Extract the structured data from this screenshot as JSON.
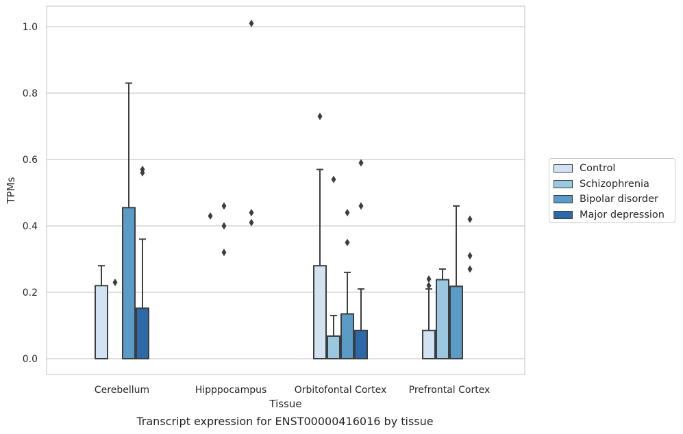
{
  "chart_data": {
    "type": "bar",
    "title": "Transcript expression for ENST00000416016 by tissue",
    "xlabel": "Tissue",
    "ylabel": "TPMs",
    "ylim": [
      -0.05,
      1.06
    ],
    "yticks": [
      0.0,
      0.2,
      0.4,
      0.6,
      0.8,
      1.0
    ],
    "ytick_labels": [
      "0.0",
      "0.2",
      "0.4",
      "0.6",
      "0.8",
      "1.0"
    ],
    "grid": true,
    "legend_position": "right",
    "categories": [
      "Cerebellum",
      "Hipppocampus",
      "Orbitofontal Cortex",
      "Prefrontal Cortex"
    ],
    "series": [
      {
        "name": "Control",
        "color": "#d1e2f2",
        "values": [
          0.22,
          0.0,
          0.28,
          0.085
        ],
        "whisker_top": [
          0.28,
          0.0,
          0.57,
          0.21
        ],
        "outliers": [
          [],
          [
            0.43
          ],
          [
            0.73
          ],
          [
            0.22,
            0.24
          ]
        ]
      },
      {
        "name": "Schizophrenia",
        "color": "#9ac8e0",
        "values": [
          0.0,
          0.0,
          0.068,
          0.238
        ],
        "whisker_top": [
          0.0,
          0.0,
          0.13,
          0.27
        ],
        "outliers": [
          [
            0.23
          ],
          [
            0.32,
            0.4,
            0.46
          ],
          [
            0.54
          ],
          []
        ]
      },
      {
        "name": "Bipolar disorder",
        "color": "#5a9bc8",
        "values": [
          0.455,
          0.0,
          0.135,
          0.218
        ],
        "whisker_top": [
          0.83,
          0.0,
          0.26,
          0.46
        ],
        "outliers": [
          [],
          [],
          [
            0.35,
            0.44
          ],
          []
        ]
      },
      {
        "name": "Major depression",
        "color": "#2b6aa6",
        "values": [
          0.152,
          0.0,
          0.085,
          0.0
        ],
        "whisker_top": [
          0.36,
          0.0,
          0.21,
          0.0
        ],
        "outliers": [
          [
            0.56,
            0.57
          ],
          [
            0.41,
            0.44,
            1.01
          ],
          [
            0.46,
            0.59
          ],
          [
            0.27,
            0.31,
            0.42
          ]
        ]
      }
    ]
  }
}
